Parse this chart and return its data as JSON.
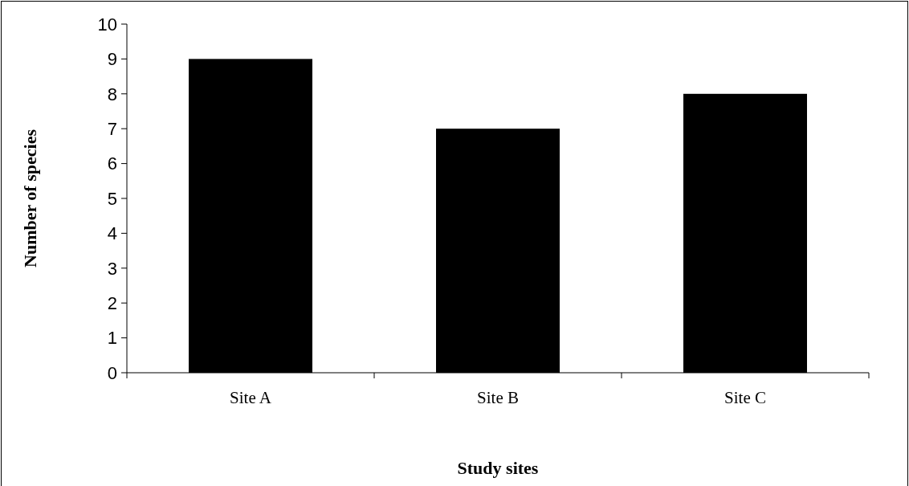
{
  "chart_data": {
    "type": "bar",
    "xlabel": "Study sites",
    "ylabel": "Number of species",
    "categories": [
      "Site A",
      "Site B",
      "Site C"
    ],
    "values": [
      9,
      7,
      8
    ],
    "color": "#000000",
    "ylim": [
      0,
      10
    ],
    "yticks": [
      0,
      1,
      2,
      3,
      4,
      5,
      6,
      7,
      8,
      9,
      10
    ]
  }
}
